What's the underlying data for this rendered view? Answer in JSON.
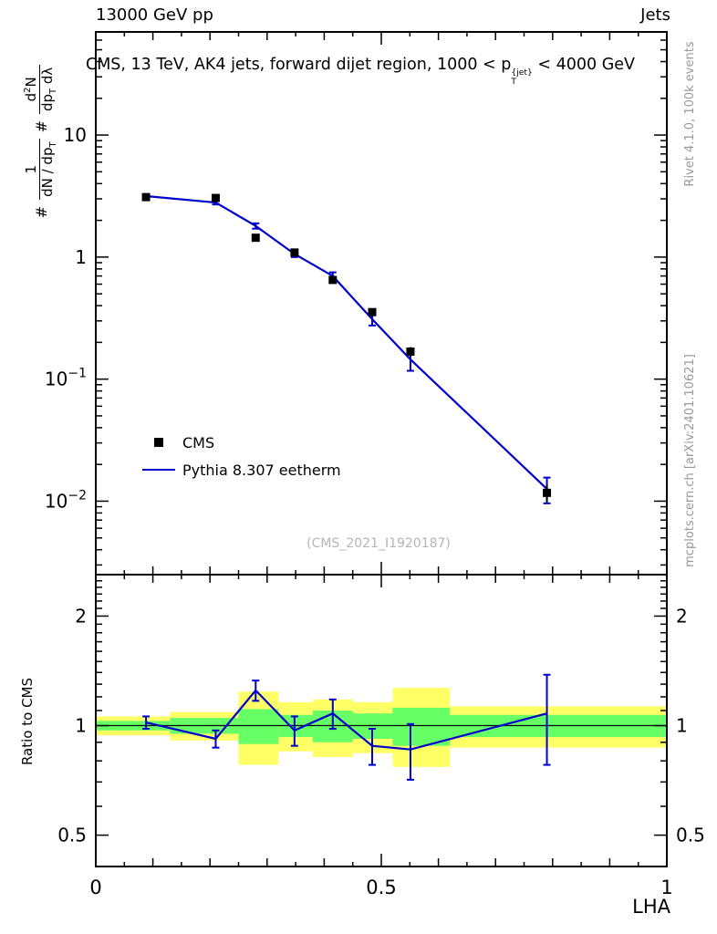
{
  "header": {
    "left": "13000 GeV pp",
    "right": "Jets"
  },
  "title": {
    "part1": "CMS, 13 TeV, AK4 jets, forward dijet region, 1000 < p",
    "sup": "{jet}",
    "sub": "T",
    "part2": " < 4000 GeV"
  },
  "ylabel_main": {
    "hash1": "#",
    "f1num": "1",
    "f1den_main": "dN / dp",
    "f1den_sub": "T",
    "hash2": "#",
    "f2num_a": "d",
    "f2num_sup": "2",
    "f2num_b": "N",
    "f2den_main": "dp",
    "f2den_sub": "T",
    "f2den_tail": " dλ"
  },
  "ratio_ylabel": "Ratio to CMS",
  "xlabel": "LHA",
  "side": {
    "top": "Rivet 4.1.0, 100k events",
    "bottom": "mcplots.cern.ch [arXiv:2401.10621]"
  },
  "watermark": "(CMS_2021_I1920187)",
  "legend": {
    "items": [
      {
        "label": "CMS",
        "marker": "black-square"
      },
      {
        "label": "Pythia 8.307 eetherm",
        "marker": "blue-line"
      }
    ]
  },
  "colors": {
    "line": "#0000cc",
    "marker": "#000000",
    "band_green": "#66ff66",
    "band_yellow": "#ffff66",
    "frame": "#000000",
    "gray_text": "#999999",
    "watermark": "#b5b5b5"
  },
  "chart_data": [
    {
      "type": "line",
      "panel": "main",
      "title": "CMS, 13 TeV, AK4 jets, forward dijet region, 1000 < pT{jet} < 4000 GeV",
      "xlabel": "LHA",
      "ylabel": "# 1/(dN/dpT) d2N/(dpT dlambda)",
      "x": [
        0.088,
        0.21,
        0.28,
        0.348,
        0.415,
        0.484,
        0.551,
        0.79
      ],
      "series": [
        {
          "name": "CMS",
          "style": "scatter-square",
          "color": "#000000",
          "y": [
            3.1,
            3.05,
            1.44,
            1.09,
            0.65,
            0.354,
            0.168,
            0.0117
          ],
          "yerr": [
            0.15,
            0.15,
            0.08,
            0.06,
            0.04,
            0.025,
            0.015,
            0.002
          ]
        },
        {
          "name": "Pythia 8.307 eetherm",
          "style": "line",
          "color": "#0000cc",
          "y": [
            3.16,
            2.8,
            1.8,
            1.06,
            0.7,
            0.31,
            0.145,
            0.0126
          ],
          "yerr": [
            0.1,
            0.1,
            0.09,
            0.06,
            0.05,
            0.035,
            0.028,
            0.003
          ]
        }
      ],
      "xlim": [
        0,
        1
      ],
      "ylim": [
        0.0025,
        70
      ],
      "yscale": "log",
      "grid": false,
      "legend_position": "center-left",
      "yticks": [
        {
          "v": 0.01,
          "base": "10",
          "exp": "−2"
        },
        {
          "v": 0.1,
          "base": "10",
          "exp": "−1"
        },
        {
          "v": 1,
          "base": "1",
          "exp": ""
        },
        {
          "v": 10,
          "base": "10",
          "exp": ""
        }
      ]
    },
    {
      "type": "line",
      "panel": "ratio",
      "ylabel": "Ratio to CMS",
      "x": [
        0.088,
        0.21,
        0.28,
        0.348,
        0.415,
        0.484,
        0.551,
        0.79
      ],
      "values": [
        1.02,
        0.92,
        1.25,
        0.97,
        1.08,
        0.88,
        0.86,
        1.08
      ],
      "yerr": [
        0.04,
        0.05,
        0.08,
        0.09,
        0.1,
        0.1,
        0.15,
        0.3
      ],
      "reference_line": 1,
      "bands": [
        {
          "x0": 0.0,
          "x1": 0.13,
          "yellow_lo": 0.94,
          "yellow_hi": 1.06,
          "green_lo": 0.97,
          "green_hi": 1.03
        },
        {
          "x0": 0.13,
          "x1": 0.25,
          "yellow_lo": 0.91,
          "yellow_hi": 1.09,
          "green_lo": 0.95,
          "green_hi": 1.05
        },
        {
          "x0": 0.25,
          "x1": 0.32,
          "yellow_lo": 0.78,
          "yellow_hi": 1.24,
          "green_lo": 0.89,
          "green_hi": 1.11
        },
        {
          "x0": 0.32,
          "x1": 0.38,
          "yellow_lo": 0.85,
          "yellow_hi": 1.16,
          "green_lo": 0.93,
          "green_hi": 1.07
        },
        {
          "x0": 0.38,
          "x1": 0.45,
          "yellow_lo": 0.82,
          "yellow_hi": 1.18,
          "green_lo": 0.9,
          "green_hi": 1.1
        },
        {
          "x0": 0.45,
          "x1": 0.52,
          "yellow_lo": 0.84,
          "yellow_hi": 1.16,
          "green_lo": 0.92,
          "green_hi": 1.08
        },
        {
          "x0": 0.52,
          "x1": 0.62,
          "yellow_lo": 0.77,
          "yellow_hi": 1.27,
          "green_lo": 0.88,
          "green_hi": 1.12
        },
        {
          "x0": 0.62,
          "x1": 1.0,
          "yellow_lo": 0.87,
          "yellow_hi": 1.13,
          "green_lo": 0.93,
          "green_hi": 1.07
        }
      ],
      "xlim": [
        0,
        1
      ],
      "ylim": [
        0.41,
        2.6
      ],
      "yscale": "log",
      "xticks": [
        {
          "v": 0,
          "label": "0"
        },
        {
          "v": 0.5,
          "label": "0.5"
        },
        {
          "v": 1,
          "label": "1"
        }
      ],
      "yticks": [
        {
          "v": 0.5,
          "label": "0.5"
        },
        {
          "v": 1,
          "label": "1"
        },
        {
          "v": 2,
          "label": "2"
        }
      ]
    }
  ]
}
